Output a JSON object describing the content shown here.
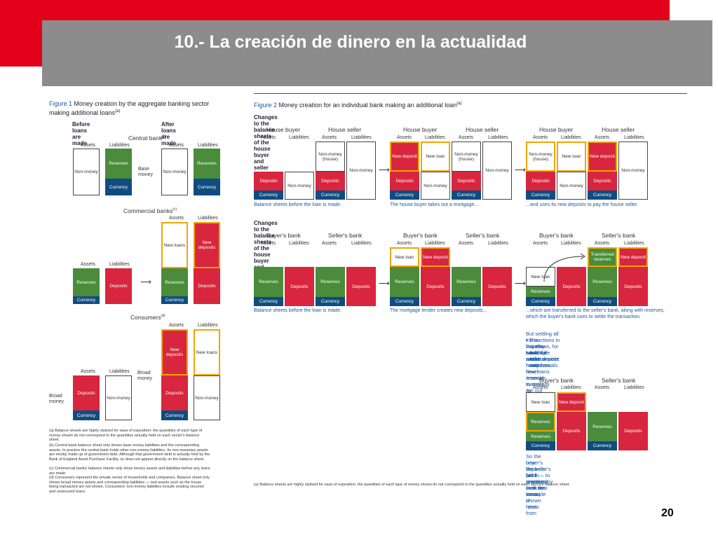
{
  "slide": {
    "title": "10.- La creación de dinero en la actualidad",
    "page_number": "20"
  },
  "fig1": {
    "title_prefix": "Figure 1",
    "title_rest": "Money creation by the aggregate banking sector making additional loans",
    "title_sup": "(a)",
    "before": "Before loans are made",
    "after": "After loans are made",
    "central_bank": "Central bank",
    "central_bank_sup": "(b)",
    "commercial_banks": "Commercial banks",
    "commercial_banks_sup": "(c)",
    "consumers": "Consumers",
    "consumers_sup": "(d)",
    "assets": "Assets",
    "liabilities": "Liabilities",
    "non_money": "Non-money",
    "reserves": "Reserves",
    "currency": "Currency",
    "deposits": "Deposits",
    "new_loans": "New loans",
    "new_deposits": "New deposits",
    "base_money": "Base money",
    "broad_money": "Broad money",
    "footnotes": [
      "(a) Balance sheets are highly stylised for ease of exposition: the quantities of each type of money shown do not correspond to the quantities actually held on each sector's balance sheet.",
      "(b) Central bank balance sheet only shows base money liabilities and the corresponding assets. In practice the central bank holds other non-money liabilities. Its non-monetary assets are mostly made up of government debt. Although that government debt is actually held by the Bank of England Asset Purchase Facility, so does not appear directly on the balance sheet.",
      "(c) Commercial banks' balance sheets only show money assets and liabilities before any loans are made.",
      "(d) Consumers represent the private sector of households and companies. Balance sheet only shows broad money assets and corresponding liabilities — real assets such as the house being transacted are not shown. Consumers' non-money liabilities include existing secured and unsecured loans."
    ]
  },
  "fig2": {
    "title_prefix": "Figure 2",
    "title_rest": "Money creation for an individual bank making an additional loan",
    "title_sup": "(a)",
    "section1": "Changes to the balance sheets of the house buyer and seller",
    "section2": "Changes to the balance sheets of the house buyer and seller's banks",
    "house_buyer": "House buyer",
    "house_seller": "House seller",
    "buyers_bank": "Buyer's bank",
    "sellers_bank": "Seller's bank",
    "assets": "Assets",
    "liabilities": "Liabilities",
    "non_money": "Non-money",
    "non_money_house": "Non-money (house)",
    "deposits": "Deposits",
    "currency": "Currency",
    "reserves": "Reserves",
    "new_deposit": "New deposit",
    "new_loan": "New loan",
    "transferred_reserves": "Transferred reserves",
    "cap1a": "Balance sheets before the loan is made.",
    "cap1b": "The house buyer takes out a mortgage...",
    "cap1c": "...and uses its new deposits to pay the house seller.",
    "cap2a": "Balance sheets before the loan is made.",
    "cap2b": "The mortgage lender creates new deposits...",
    "cap2c1": "...which are transferred to the seller's bank, along with reserves,",
    "cap2c2": "which the buyer's bank uses to settle the transaction.",
    "note_lines": [
      "But settling all transactions in this way would be unsustainable:",
      "• The buyer's bank would have fewer reserves to meet its possible",
      "  outflows, for example from deposit withdrawals.",
      "• And if it made many new loans it would eventually run out",
      "  of reserves."
    ],
    "final_lines": [
      "So the buyer's bank will in practice seek to attract or retain",
      "new deposits (and reserves) — in the example shown here, from",
      "the seller's bank — to accompany their new loans."
    ],
    "footnote": "(a) Balance sheets are highly stylised for ease of exposition: the quantities of each type of money shown do not correspond to the quantities actually held on each sector's balance sheet."
  }
}
